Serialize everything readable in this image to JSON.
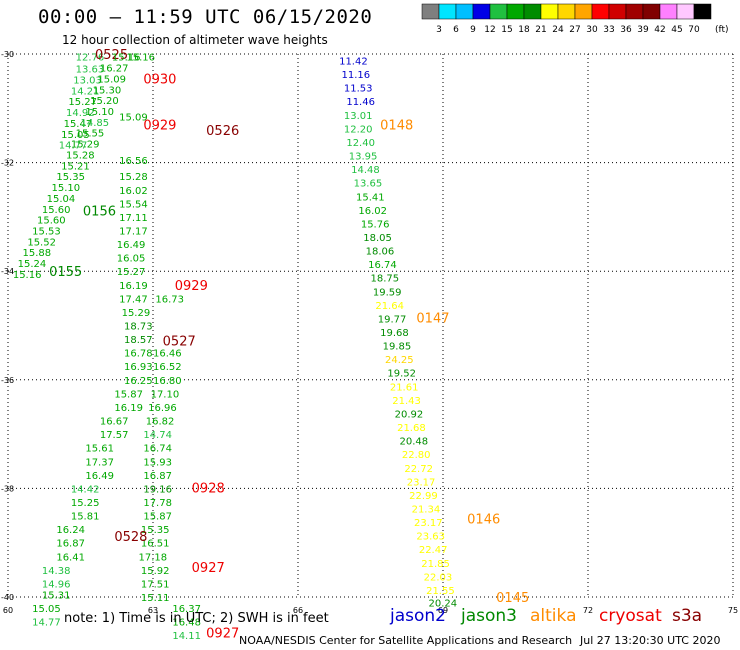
{
  "title": "00:00 – 11:59 UTC 06/15/2020",
  "subtitle": "12 hour collection of altimeter wave heights",
  "note": "note: 1) Time is in UTC; 2) SWH is in feet",
  "credit": "NOAA/NESDIS Center for Satellite Applications and Research",
  "timestamp": "Jul 27 13:20:30 UTC 2020",
  "legend": {
    "unit": "(ft)",
    "labels": [
      "3",
      "6",
      "9",
      "12",
      "15",
      "18",
      "21",
      "24",
      "27",
      "30",
      "33",
      "36",
      "39",
      "42",
      "45",
      "70"
    ],
    "colors": [
      "#7f7f7f",
      "#00e5ff",
      "#00bfff",
      "#0000e6",
      "#20c040",
      "#00a800",
      "#008c00",
      "#ffff00",
      "#ffd700",
      "#ffa500",
      "#ff0000",
      "#d00000",
      "#a00000",
      "#800000",
      "#ff80ff",
      "#ffc8ff",
      "#000000"
    ]
  },
  "satellites": [
    {
      "name": "jason2",
      "color": "#0000cc"
    },
    {
      "name": "jason3",
      "color": "#008800"
    },
    {
      "name": "altika",
      "color": "#ff8c00"
    },
    {
      "name": "cryosat",
      "color": "#ee0000"
    },
    {
      "name": "s3a",
      "color": "#880000"
    }
  ],
  "chart_data": {
    "type": "scatter",
    "title": "00:00 – 11:59 UTC 06/15/2020",
    "subtitle": "12 hour collection of altimeter wave heights",
    "xlabel": "",
    "ylabel": "",
    "xlim": [
      60,
      75
    ],
    "ylim": [
      -40,
      -30
    ],
    "x_ticks": [
      60,
      63,
      66,
      69,
      72,
      75
    ],
    "y_ticks": [
      -30,
      -32,
      -34,
      -36,
      -38,
      -40
    ],
    "grid": true,
    "unit": "ft",
    "tracks": [
      {
        "name": "s3a-0525",
        "satellite": "s3a",
        "time": "0525",
        "time_pos": [
          61.8,
          -30.0
        ],
        "points": [
          {
            "lon": 61.4,
            "lat": -30.05,
            "swh": 12.76
          },
          {
            "lon": 61.4,
            "lat": -30.27,
            "swh": 13.63
          },
          {
            "lon": 61.35,
            "lat": -30.47,
            "swh": 13.03
          },
          {
            "lon": 61.3,
            "lat": -30.67,
            "swh": 14.21
          },
          {
            "lon": 61.25,
            "lat": -30.87,
            "swh": 15.27
          },
          {
            "lon": 61.2,
            "lat": -31.07,
            "swh": 14.92
          },
          {
            "lon": 61.15,
            "lat": -31.27,
            "swh": 15.47
          },
          {
            "lon": 61.1,
            "lat": -31.47,
            "swh": 15.05
          },
          {
            "lon": 61.05,
            "lat": -31.67,
            "swh": 14.77
          }
        ]
      },
      {
        "name": "jason2-2",
        "satellite": "jason2",
        "time": "",
        "time_pos": null,
        "points": [
          {
            "lon": 66.85,
            "lat": -30.12,
            "swh": 11.42
          },
          {
            "lon": 66.9,
            "lat": -30.37,
            "swh": 11.16
          },
          {
            "lon": 66.95,
            "lat": -30.62,
            "swh": 11.53
          },
          {
            "lon": 67.0,
            "lat": -30.87,
            "swh": 11.46
          }
        ]
      },
      {
        "name": "altika-0148",
        "satellite": "altika",
        "time": "0148",
        "time_pos": [
          67.7,
          -31.3
        ],
        "points": [
          {
            "lon": 66.95,
            "lat": -31.12,
            "swh": 13.01
          },
          {
            "lon": 66.95,
            "lat": -31.37,
            "swh": 12.2
          },
          {
            "lon": 67.0,
            "lat": -31.62,
            "swh": 12.4
          },
          {
            "lon": 67.05,
            "lat": -31.87,
            "swh": 13.95
          },
          {
            "lon": 67.1,
            "lat": -32.12,
            "swh": 14.48
          },
          {
            "lon": 67.15,
            "lat": -32.37,
            "swh": 13.65
          },
          {
            "lon": 67.2,
            "lat": -32.62,
            "swh": 15.41
          },
          {
            "lon": 67.25,
            "lat": -32.87,
            "swh": 16.02
          },
          {
            "lon": 67.3,
            "lat": -33.12,
            "swh": 15.76
          },
          {
            "lon": 67.35,
            "lat": -33.37,
            "swh": 18.05
          },
          {
            "lon": 67.4,
            "lat": -33.62,
            "swh": 18.06
          },
          {
            "lon": 67.45,
            "lat": -33.87,
            "swh": 16.74
          },
          {
            "lon": 67.5,
            "lat": -34.12,
            "swh": 18.75
          },
          {
            "lon": 67.55,
            "lat": -34.37,
            "swh": 19.59
          },
          {
            "lon": 67.6,
            "lat": -34.62,
            "swh": 21.64
          },
          {
            "lon": 67.65,
            "lat": -34.87,
            "swh": 19.77
          },
          {
            "lon": 67.7,
            "lat": -35.12,
            "swh": 19.68
          },
          {
            "lon": 67.75,
            "lat": -35.37,
            "swh": 19.85
          },
          {
            "lon": 67.8,
            "lat": -35.62,
            "swh": 24.25
          },
          {
            "lon": 67.85,
            "lat": -35.87,
            "swh": 19.52
          },
          {
            "lon": 67.9,
            "lat": -36.12,
            "swh": 21.61
          },
          {
            "lon": 67.95,
            "lat": -36.37,
            "swh": 21.43
          },
          {
            "lon": 68.0,
            "lat": -36.62,
            "swh": 20.92
          },
          {
            "lon": 68.05,
            "lat": -36.87,
            "swh": 21.68
          },
          {
            "lon": 68.1,
            "lat": -37.12,
            "swh": 20.48
          },
          {
            "lon": 68.15,
            "lat": -37.37,
            "swh": 22.8
          },
          {
            "lon": 68.2,
            "lat": -37.62,
            "swh": 22.72
          },
          {
            "lon": 68.25,
            "lat": -37.87,
            "swh": 23.17
          },
          {
            "lon": 68.3,
            "lat": -38.12,
            "swh": 22.99
          }
        ]
      },
      {
        "name": "altika-0147",
        "satellite": "altika",
        "time": "0147",
        "time_pos": [
          68.45,
          -34.85
        ],
        "points": []
      },
      {
        "name": "altika-0146",
        "satellite": "altika",
        "time": "0146",
        "time_pos": [
          69.5,
          -38.55
        ],
        "points": [
          {
            "lon": 68.35,
            "lat": -38.37,
            "swh": 21.34
          },
          {
            "lon": 68.4,
            "lat": -38.62,
            "swh": 23.17
          },
          {
            "lon": 68.45,
            "lat": -38.87,
            "swh": 23.63
          },
          {
            "lon": 68.5,
            "lat": -39.12,
            "swh": 22.47
          },
          {
            "lon": 68.55,
            "lat": -39.37,
            "swh": 21.85
          },
          {
            "lon": 68.6,
            "lat": -39.62,
            "swh": 22.03
          },
          {
            "lon": 68.65,
            "lat": -39.87,
            "swh": 21.55
          }
        ]
      },
      {
        "name": "altika-0145",
        "satellite": "altika",
        "time": "0145",
        "time_pos": [
          70.1,
          -40.0
        ],
        "points": [
          {
            "lon": 68.7,
            "lat": -40.1,
            "swh": 20.24
          }
        ]
      },
      {
        "name": "jason3-0156",
        "satellite": "jason3",
        "time": "0156",
        "time_pos": [
          61.55,
          -32.88
        ],
        "points": [
          {
            "lon": 62.15,
            "lat": -30.05,
            "swh": 15.16
          },
          {
            "lon": 61.9,
            "lat": -30.25,
            "swh": 16.27
          },
          {
            "lon": 61.85,
            "lat": -30.45,
            "swh": 15.09
          },
          {
            "lon": 61.75,
            "lat": -30.65,
            "swh": 15.3
          },
          {
            "lon": 61.7,
            "lat": -30.85,
            "swh": 15.2
          },
          {
            "lon": 61.6,
            "lat": -31.05,
            "swh": 15.1
          },
          {
            "lon": 61.5,
            "lat": -31.25,
            "swh": 14.85
          },
          {
            "lon": 61.4,
            "lat": -31.45,
            "swh": 15.55
          },
          {
            "lon": 61.3,
            "lat": -31.65,
            "swh": 15.29
          },
          {
            "lon": 61.2,
            "lat": -31.85,
            "swh": 15.28
          },
          {
            "lon": 61.1,
            "lat": -32.05,
            "swh": 15.21
          },
          {
            "lon": 61.0,
            "lat": -32.25,
            "swh": 15.35
          },
          {
            "lon": 60.9,
            "lat": -32.45,
            "swh": 15.1
          },
          {
            "lon": 60.8,
            "lat": -32.65,
            "swh": 15.04
          },
          {
            "lon": 60.7,
            "lat": -32.85,
            "swh": 15.6
          },
          {
            "lon": 60.6,
            "lat": -33.05,
            "swh": 15.6
          },
          {
            "lon": 60.5,
            "lat": -33.25,
            "swh": 15.53
          },
          {
            "lon": 60.4,
            "lat": -33.45,
            "swh": 15.52
          },
          {
            "lon": 60.3,
            "lat": -33.65,
            "swh": 15.88
          },
          {
            "lon": 60.2,
            "lat": -33.85,
            "swh": 15.24
          },
          {
            "lon": 60.1,
            "lat": -34.05,
            "swh": 15.16
          }
        ]
      },
      {
        "name": "jason3-0155",
        "satellite": "jason3",
        "time": "0155",
        "time_pos": [
          60.85,
          -34.0
        ],
        "points": []
      },
      {
        "name": "cryosat-0930",
        "satellite": "cryosat",
        "time": "0930",
        "time_pos": [
          62.8,
          -30.45
        ],
        "points": []
      },
      {
        "name": "cryosat-0929a",
        "satellite": "cryosat",
        "time": "0929",
        "time_pos": [
          62.8,
          -31.3
        ],
        "points": []
      },
      {
        "name": "s3a-0526",
        "satellite": "s3a",
        "time": "0526",
        "time_pos": [
          64.1,
          -31.4
        ],
        "points": []
      },
      {
        "name": "jason3-center",
        "satellite": "jason3",
        "time": "",
        "time_pos": null,
        "points": [
          {
            "lon": 62.45,
            "lat": -30.05,
            "swh": 15.16
          },
          {
            "lon": 62.3,
            "lat": -31.15,
            "swh": 15.09
          },
          {
            "lon": 62.3,
            "lat": -31.95,
            "swh": 16.56
          },
          {
            "lon": 62.3,
            "lat": -32.25,
            "swh": 15.28
          },
          {
            "lon": 62.3,
            "lat": -32.5,
            "swh": 16.02
          },
          {
            "lon": 62.3,
            "lat": -32.75,
            "swh": 15.54
          },
          {
            "lon": 62.3,
            "lat": -33.0,
            "swh": 17.11
          },
          {
            "lon": 62.3,
            "lat": -33.25,
            "swh": 17.17
          },
          {
            "lon": 62.25,
            "lat": -33.5,
            "swh": 16.49
          },
          {
            "lon": 62.25,
            "lat": -33.75,
            "swh": 16.05
          },
          {
            "lon": 62.25,
            "lat": -34.0,
            "swh": 15.27
          },
          {
            "lon": 62.3,
            "lat": -34.25,
            "swh": 16.19
          },
          {
            "lon": 62.3,
            "lat": -34.5,
            "swh": 17.47
          },
          {
            "lon": 62.35,
            "lat": -34.75,
            "swh": 15.29
          },
          {
            "lon": 62.4,
            "lat": -35.0,
            "swh": 18.73
          },
          {
            "lon": 62.4,
            "lat": -35.25,
            "swh": 18.57
          },
          {
            "lon": 62.4,
            "lat": -35.5,
            "swh": 16.78
          },
          {
            "lon": 62.4,
            "lat": -35.75,
            "swh": 16.93
          },
          {
            "lon": 62.4,
            "lat": -36.0,
            "swh": 16.25
          },
          {
            "lon": 62.2,
            "lat": -36.25,
            "swh": 15.87
          },
          {
            "lon": 62.2,
            "lat": -36.5,
            "swh": 16.19
          },
          {
            "lon": 61.9,
            "lat": -36.75,
            "swh": 16.67
          },
          {
            "lon": 61.9,
            "lat": -37.0,
            "swh": 17.57
          },
          {
            "lon": 61.6,
            "lat": -37.25,
            "swh": 15.61
          },
          {
            "lon": 61.6,
            "lat": -37.5,
            "swh": 17.37
          },
          {
            "lon": 61.6,
            "lat": -37.75,
            "swh": 16.49
          },
          {
            "lon": 61.3,
            "lat": -38.0,
            "swh": 14.42
          },
          {
            "lon": 61.3,
            "lat": -38.25,
            "swh": 15.25
          },
          {
            "lon": 61.3,
            "lat": -38.5,
            "swh": 15.81
          },
          {
            "lon": 61.0,
            "lat": -38.75,
            "swh": 16.24
          },
          {
            "lon": 61.0,
            "lat": -39.0,
            "swh": 16.87
          },
          {
            "lon": 61.0,
            "lat": -39.25,
            "swh": 16.41
          },
          {
            "lon": 60.7,
            "lat": -39.5,
            "swh": 14.38
          },
          {
            "lon": 60.7,
            "lat": -39.75,
            "swh": 14.96
          },
          {
            "lon": 60.7,
            "lat": -39.95,
            "swh": 15.31
          }
        ]
      },
      {
        "name": "cryosat-0929b",
        "satellite": "cryosat",
        "time": "0929",
        "time_pos": [
          63.45,
          -34.25
        ],
        "points": []
      },
      {
        "name": "s3a-0527",
        "satellite": "s3a",
        "time": "0527",
        "time_pos": [
          63.2,
          -35.28
        ],
        "points": [
          {
            "lon": 63.05,
            "lat": -34.5,
            "swh": 16.73
          },
          {
            "lon": 63.0,
            "lat": -35.5,
            "swh": 16.46
          },
          {
            "lon": 63.0,
            "lat": -35.75,
            "swh": 16.52
          },
          {
            "lon": 63.0,
            "lat": -36.0,
            "swh": 16.8
          },
          {
            "lon": 62.95,
            "lat": -36.25,
            "swh": 17.1
          },
          {
            "lon": 62.9,
            "lat": -36.5,
            "swh": 16.96
          },
          {
            "lon": 62.85,
            "lat": -36.75,
            "swh": 16.82
          },
          {
            "lon": 62.8,
            "lat": -37.0,
            "swh": 14.74
          },
          {
            "lon": 62.8,
            "lat": -37.25,
            "swh": 16.74
          },
          {
            "lon": 62.8,
            "lat": -37.5,
            "swh": 15.93
          },
          {
            "lon": 62.8,
            "lat": -37.75,
            "swh": 16.87
          },
          {
            "lon": 62.8,
            "lat": -38.0,
            "swh": 19.16
          },
          {
            "lon": 62.8,
            "lat": -38.25,
            "swh": 17.78
          },
          {
            "lon": 62.8,
            "lat": -38.5,
            "swh": 15.87
          },
          {
            "lon": 62.75,
            "lat": -38.75,
            "swh": 15.35
          },
          {
            "lon": 62.75,
            "lat": -39.0,
            "swh": 16.51
          },
          {
            "lon": 62.7,
            "lat": -39.25,
            "swh": 17.18
          },
          {
            "lon": 62.75,
            "lat": -39.5,
            "swh": 15.92
          },
          {
            "lon": 62.75,
            "lat": -39.75,
            "swh": 17.51
          },
          {
            "lon": 62.75,
            "lat": -40.0,
            "swh": 15.11
          }
        ]
      },
      {
        "name": "cryosat-0928",
        "satellite": "cryosat",
        "time": "0928",
        "time_pos": [
          63.8,
          -37.98
        ],
        "points": []
      },
      {
        "name": "s3a-0528",
        "satellite": "s3a",
        "time": "0528",
        "time_pos": [
          62.2,
          -38.88
        ],
        "points": []
      },
      {
        "name": "cryosat-0927a",
        "satellite": "cryosat",
        "time": "0927",
        "time_pos": [
          63.8,
          -39.45
        ],
        "points": [
          {
            "lon": 63.4,
            "lat": -40.2,
            "swh": 16.37
          },
          {
            "lon": 63.4,
            "lat": -40.45,
            "swh": 16.48
          },
          {
            "lon": 63.4,
            "lat": -40.7,
            "swh": 14.11
          }
        ]
      },
      {
        "name": "cryosat-0927b",
        "satellite": "cryosat",
        "time": "0927",
        "time_pos": [
          64.1,
          -40.65
        ],
        "points": []
      },
      {
        "name": "jason3-lower",
        "satellite": "jason3",
        "time": "",
        "time_pos": null,
        "points": [
          {
            "lon": 60.5,
            "lat": -40.2,
            "swh": 15.05
          },
          {
            "lon": 60.5,
            "lat": -40.45,
            "swh": 14.77
          }
        ]
      }
    ]
  }
}
